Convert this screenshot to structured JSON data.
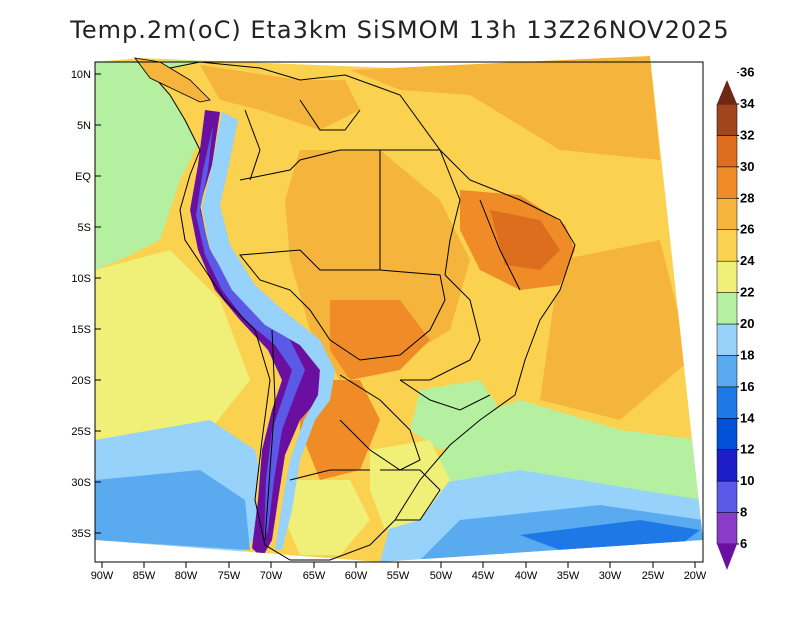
{
  "title": "Temp.2m(oC) Eta3km SiSMOM 13h 13Z26NOV2025",
  "lat_labels": [
    "10N",
    "5N",
    "EQ",
    "5S",
    "10S",
    "15S",
    "20S",
    "25S",
    "30S",
    "35S"
  ],
  "lon_labels": [
    "90W",
    "85W",
    "80W",
    "75W",
    "70W",
    "65W",
    "60W",
    "55W",
    "50W",
    "45W",
    "40W",
    "35W",
    "30W",
    "25W",
    "20W"
  ],
  "colorbar": {
    "labels": [
      "6",
      "8",
      "10",
      "12",
      "14",
      "16",
      "18",
      "20",
      "22",
      "24",
      "26",
      "28",
      "30",
      "32",
      "34",
      "36"
    ],
    "colors": [
      "#6a0fa0",
      "#8a3cc8",
      "#5a5ae6",
      "#1e1ec8",
      "#0050d8",
      "#1e78e6",
      "#5aaaf0",
      "#96d2fa",
      "#b4f0a0",
      "#f0f078",
      "#fad250",
      "#f5b43c",
      "#f08c28",
      "#dc6e1e",
      "#a0461e",
      "#6e2814"
    ]
  },
  "palette": {
    "ocean_cool": "#5aaaf0",
    "ocean_mild": "#96d2fa",
    "ocean_warm": "#b4f0a0",
    "ocean_tropic": "#f0f078",
    "land_warm": "#fad250",
    "land_hot": "#f08c28",
    "land_veryhot": "#dc6e1e",
    "andes": "#6a0fa0"
  }
}
